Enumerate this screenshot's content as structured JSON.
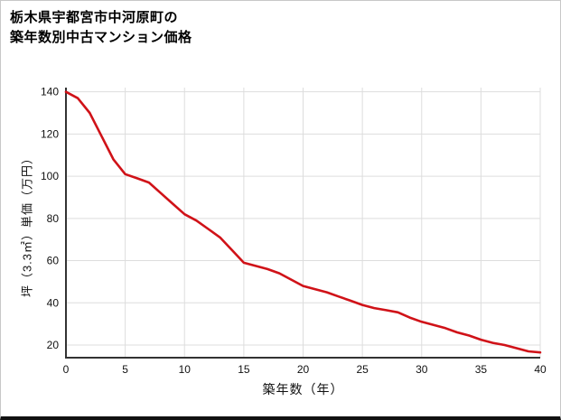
{
  "chart_data": {
    "type": "line",
    "title_lines": [
      "栃木県宇都宮市中河原町の",
      "築年数別中古マンション価格"
    ],
    "xlabel": "築年数（年）",
    "ylabel": "坪（3.3㎡）単価（万円）",
    "x": [
      0,
      1,
      2,
      3,
      4,
      5,
      6,
      7,
      8,
      9,
      10,
      11,
      12,
      13,
      14,
      15,
      16,
      17,
      18,
      19,
      20,
      21,
      22,
      23,
      24,
      25,
      26,
      27,
      28,
      29,
      30,
      31,
      32,
      33,
      34,
      35,
      36,
      37,
      38,
      39,
      40
    ],
    "values": [
      140,
      137,
      130,
      119,
      108,
      101,
      99,
      97,
      92,
      87,
      82,
      79,
      75,
      71,
      65,
      59,
      57.5,
      56,
      54,
      51,
      48,
      46.5,
      45,
      43,
      41,
      39,
      37.5,
      36.5,
      35.5,
      33,
      31,
      29.5,
      28,
      26,
      24.5,
      22.5,
      21,
      20,
      18.5,
      17,
      16.5
    ],
    "x_ticks": [
      0,
      5,
      10,
      15,
      20,
      25,
      30,
      35,
      40
    ],
    "y_ticks": [
      20,
      40,
      60,
      80,
      100,
      120,
      140
    ],
    "xlim": [
      0,
      40
    ],
    "ylim": [
      14,
      142
    ],
    "line_color": "#d01218",
    "grid_color": "#dddddd",
    "axis_color": "#333333",
    "tick_label_color": "#111111",
    "grid": true,
    "legend": "none"
  }
}
